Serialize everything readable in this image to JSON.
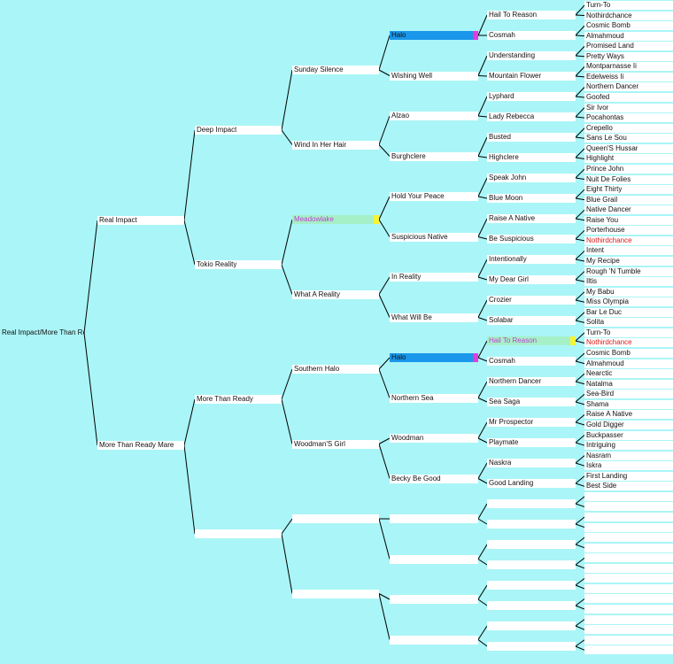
{
  "pedigree": {
    "root": "Real Impact/More Than Ready",
    "gen1": [
      "Real Impact",
      "More Than Ready Mare"
    ],
    "gen2": [
      "Deep Impact",
      "Tokio Reality",
      "More Than Ready",
      ""
    ],
    "gen3": [
      "Sunday Silence",
      "Wind In Her Hair",
      "Meadowlake",
      "What A Reality",
      "Southern Halo",
      "Woodman'S Girl",
      "",
      ""
    ],
    "gen4": [
      "Halo",
      "Wishing Well",
      "Alzao",
      "Burghclere",
      "Hold Your Peace",
      "Suspicious Native",
      "In Reality",
      "What Will Be",
      "Halo",
      "Northern Sea",
      "Woodman",
      "Becky Be Good",
      "",
      "",
      "",
      ""
    ],
    "gen5": [
      "Hail To Reason",
      "Cosmah",
      "Understanding",
      "Mountain Flower",
      "Lyphard",
      "Lady Rebecca",
      "Busted",
      "Highclere",
      "Speak John",
      "Blue Moon",
      "Raise A Native",
      "Be Suspicious",
      "Intentionally",
      "My Dear Girl",
      "Crozier",
      "Solabar",
      "Hail To Reason",
      "Cosmah",
      "Northern Dancer",
      "Sea Saga",
      "Mr Prospector",
      "Playmate",
      "Naskra",
      "Good Landing",
      "",
      "",
      "",
      "",
      "",
      "",
      "",
      ""
    ],
    "gen6": [
      "Turn-To",
      "Nothirdchance",
      "Cosmic Bomb",
      "Almahmoud",
      "Promised Land",
      "Pretty Ways",
      "Montparnasse Ii",
      "Edelweiss Ii",
      "Northern Dancer",
      "Goofed",
      "Sir Ivor",
      "Pocahontas",
      "Crepello",
      "Sans Le Sou",
      "Queen'S Hussar",
      "Highlight",
      "Prince John",
      "Nuit De Folies",
      "Eight Thirty",
      "Blue Grail",
      "Native Dancer",
      "Raise You",
      "Porterhouse",
      "Nothirdchance",
      "Intent",
      "My Recipe",
      "Rough 'N Tumble",
      "Iltis",
      "My Babu",
      "Miss Olympia",
      "Bar Le Duc",
      "Solita",
      "Turn-To",
      "Nothirdchance",
      "Cosmic Bomb",
      "Almahmoud",
      "Nearctic",
      "Natalma",
      "Sea-Bird",
      "Shama",
      "Raise A Native",
      "Gold Digger",
      "Buckpasser",
      "Intriguing",
      "Nasram",
      "Iskra",
      "First Landing",
      "Best Side",
      "",
      "",
      "",
      "",
      "",
      "",
      "",
      "",
      "",
      "",
      "",
      "",
      "",
      "",
      "",
      ""
    ]
  },
  "highlights": {
    "blue": [
      [
        "gen4",
        0
      ],
      [
        "gen4",
        8
      ]
    ],
    "green": [
      [
        "gen3",
        2
      ],
      [
        "gen5",
        16
      ]
    ],
    "magenta_text": [
      [
        "gen3",
        2
      ],
      [
        "gen5",
        16
      ]
    ],
    "red_text": [
      [
        "gen6",
        23
      ],
      [
        "gen6",
        33
      ]
    ]
  },
  "colors": {
    "background": "#aaf5f7",
    "line": "#000000",
    "box": "#ffffff",
    "highlight_blue": "#1a97ea",
    "highlight_blue_end": "#e23ce0",
    "highlight_green": "#a6f0c8",
    "highlight_green_end": "#f5f534",
    "text_red": "#e01818",
    "text_magenta": "#c040d0"
  }
}
